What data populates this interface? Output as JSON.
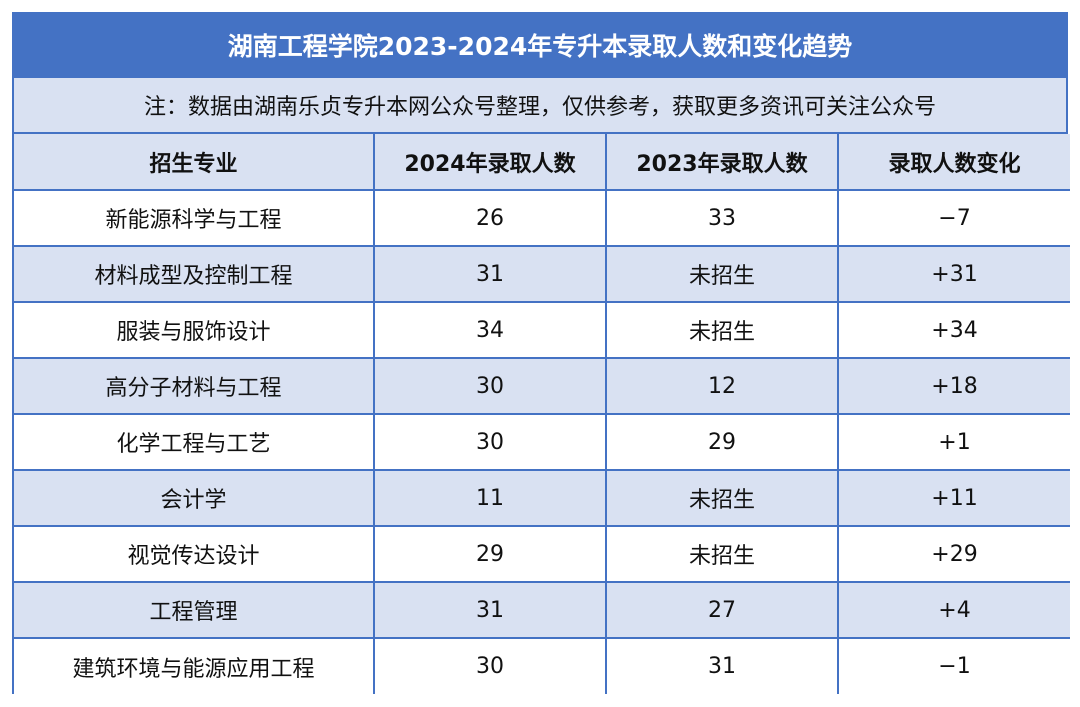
{
  "title": "湖南工程学院2023-2024年专升本录取人数和变化趋势",
  "note": "注：数据由湖南乐贞专升本网公众号整理，仅供参考，获取更多资讯可关注公众号",
  "table": {
    "headers": [
      "招生专业",
      "2024年录取人数",
      "2023年录取人数",
      "录取人数变化"
    ],
    "rows": [
      [
        "新能源科学与工程",
        "26",
        "33",
        "−7"
      ],
      [
        "材料成型及控制工程",
        "31",
        "未招生",
        "+31"
      ],
      [
        "服装与服饰设计",
        "34",
        "未招生",
        "+34"
      ],
      [
        "高分子材料与工程",
        "30",
        "12",
        "+18"
      ],
      [
        "化学工程与工艺",
        "30",
        "29",
        "+1"
      ],
      [
        "会计学",
        "11",
        "未招生",
        "+11"
      ],
      [
        "视觉传达设计",
        "29",
        "未招生",
        "+29"
      ],
      [
        "工程管理",
        "31",
        "27",
        "+4"
      ],
      [
        "建筑环境与能源应用工程",
        "30",
        "31",
        "−1"
      ]
    ]
  },
  "colors": {
    "accent": "#4472c4",
    "band": "#d9e1f2"
  }
}
